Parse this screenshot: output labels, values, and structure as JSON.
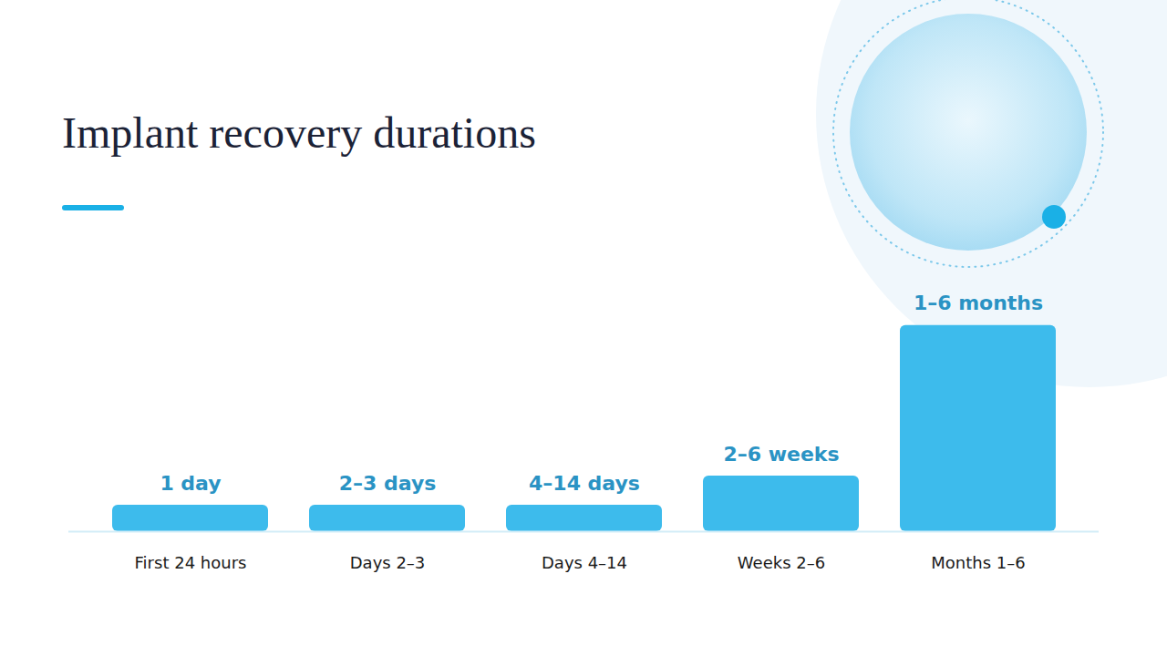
{
  "chart_data": {
    "type": "bar",
    "title": "Implant recovery durations",
    "categories": [
      "First 24 hours",
      "Days 2–3",
      "Days 4–14",
      "Weeks 2–6",
      "Months 1–6"
    ],
    "values": [
      1,
      1,
      1,
      2.1,
      7.8
    ],
    "value_labels": [
      "1 day",
      "2–3 days",
      "4–14 days",
      "2–6 weeks",
      "1–6 months"
    ],
    "data_labels": true,
    "color": "#3dbbec",
    "ylim": [
      0,
      8
    ],
    "tick_labels": "x",
    "grid": false
  }
}
